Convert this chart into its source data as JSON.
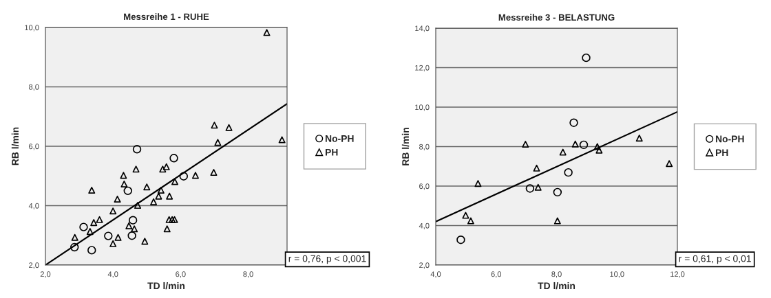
{
  "chart_data": [
    {
      "type": "scatter",
      "title": "Messreihe 1 - RUHE",
      "xlabel": "TD l/min",
      "ylabel": "RB l/min",
      "xlim": [
        2.0,
        9.15
      ],
      "ylim": [
        2.0,
        10.0
      ],
      "xticks": [
        {
          "value": 2,
          "label": "2,0"
        },
        {
          "value": 4,
          "label": "4,0"
        },
        {
          "value": 6,
          "label": "6,0"
        },
        {
          "value": 8,
          "label": "8,0"
        }
      ],
      "yticks": [
        {
          "value": 2,
          "label": "2,0"
        },
        {
          "value": 4,
          "label": "4,0"
        },
        {
          "value": 6,
          "label": "6,0"
        },
        {
          "value": 8,
          "label": "8,0"
        },
        {
          "value": 10,
          "label": "10,0"
        }
      ],
      "grid": "y",
      "legend": "right",
      "annotations": [
        "r = 0,76, p < 0,001"
      ],
      "series": [
        {
          "name": "No-PH",
          "marker": "circle",
          "color": "#000000",
          "x": [
            2.86,
            3.13,
            3.37,
            3.86,
            4.44,
            4.71,
            4.59,
            4.56,
            5.8,
            6.09
          ],
          "values": [
            2.6,
            3.28,
            2.5,
            2.98,
            4.5,
            5.9,
            3.51,
            2.99,
            5.6,
            4.99
          ]
        },
        {
          "name": "PH",
          "marker": "triangle",
          "color": "#000000",
          "x": [
            2.87,
            3.32,
            3.37,
            3.43,
            3.6,
            4.0,
            4.0,
            4.13,
            4.15,
            4.31,
            4.33,
            4.47,
            4.63,
            4.68,
            4.73,
            4.94,
            5.0,
            5.2,
            5.35,
            5.42,
            5.47,
            5.58,
            5.6,
            5.67,
            5.66,
            5.75,
            5.82,
            5.83,
            6.44,
            6.98,
            7.0,
            7.1,
            7.43,
            8.55,
            9.0
          ],
          "values": [
            2.93,
            3.13,
            4.52,
            3.43,
            3.53,
            3.82,
            2.72,
            4.22,
            2.93,
            5.02,
            4.73,
            3.32,
            3.22,
            5.23,
            4.01,
            2.8,
            4.63,
            4.13,
            4.32,
            4.52,
            5.23,
            5.31,
            3.22,
            4.32,
            3.53,
            3.53,
            3.53,
            4.81,
            5.02,
            5.12,
            6.71,
            6.13,
            6.63,
            9.83,
            6.22
          ]
        },
        {
          "type": "line",
          "color": "#000000",
          "x": [
            2.0,
            9.15
          ],
          "values": [
            2.0,
            7.43
          ]
        }
      ]
    },
    {
      "type": "scatter",
      "title": "Messreihe 3 - BELASTUNG",
      "xlabel": "TD l/min",
      "ylabel": "RB l/min",
      "xlim": [
        4.0,
        12.0
      ],
      "ylim": [
        2.0,
        14.0
      ],
      "xticks": [
        {
          "value": 4,
          "label": "4,0"
        },
        {
          "value": 6,
          "label": "6,0"
        },
        {
          "value": 8,
          "label": "8,0"
        },
        {
          "value": 10,
          "label": "10,0"
        },
        {
          "value": 12,
          "label": "12,0"
        }
      ],
      "yticks": [
        {
          "value": 2,
          "label": "2,0"
        },
        {
          "value": 4,
          "label": "4,0"
        },
        {
          "value": 6,
          "label": "6,0"
        },
        {
          "value": 8,
          "label": "8,0"
        },
        {
          "value": 10,
          "label": "10,0"
        },
        {
          "value": 12,
          "label": "12,0"
        },
        {
          "value": 14,
          "label": "14,0"
        }
      ],
      "grid": "y",
      "legend": "right",
      "annotations": [
        "r = 0,61, p < 0,01"
      ],
      "series": [
        {
          "name": "No-PH",
          "marker": "circle",
          "color": "#000000",
          "x": [
            4.83,
            7.12,
            8.03,
            8.39,
            8.57,
            8.9,
            8.98
          ],
          "values": [
            3.28,
            5.88,
            5.69,
            6.69,
            9.21,
            8.09,
            12.5
          ]
        },
        {
          "name": "PH",
          "marker": "triangle",
          "color": "#000000",
          "x": [
            4.99,
            5.16,
            5.4,
            6.97,
            7.34,
            7.39,
            8.03,
            8.21,
            8.62,
            9.35,
            9.41,
            10.74,
            11.73
          ],
          "values": [
            4.52,
            4.24,
            6.13,
            8.12,
            6.91,
            5.94,
            4.24,
            7.72,
            8.13,
            8.0,
            7.82,
            8.43,
            7.14
          ]
        },
        {
          "type": "line",
          "color": "#000000",
          "x": [
            4.0,
            12.0
          ],
          "values": [
            4.2,
            9.76
          ]
        }
      ]
    }
  ]
}
